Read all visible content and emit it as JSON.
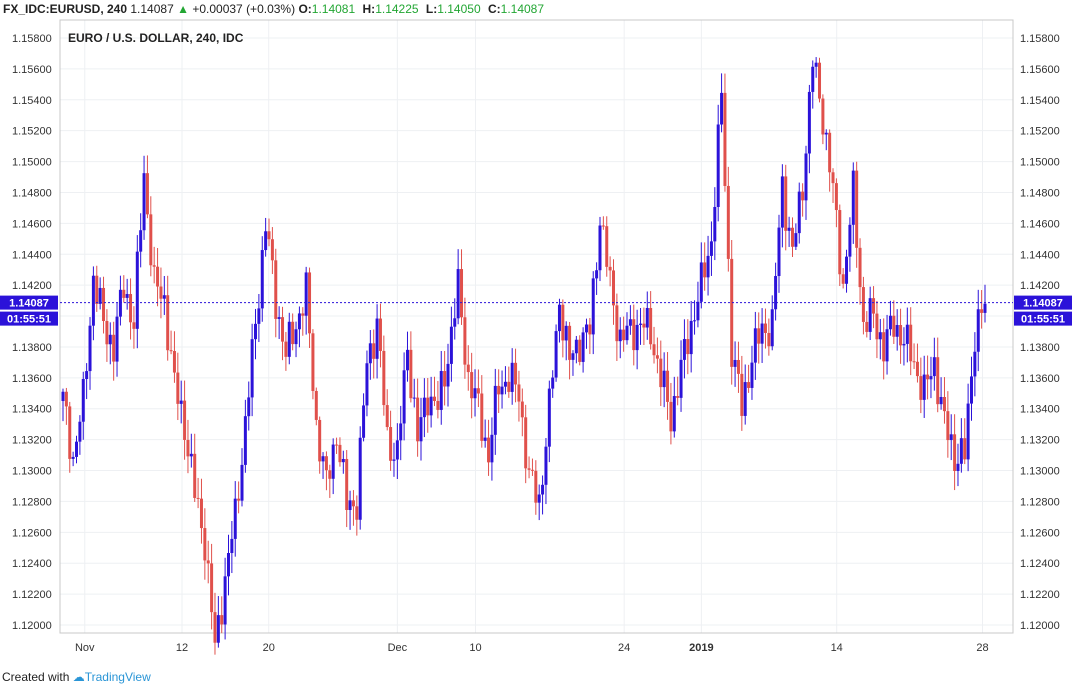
{
  "header": {
    "symbol": "FX_IDC:EURUSD, 240",
    "last": "1.14087",
    "change_arrow": "▲",
    "change": "+0.00037 (+0.03%)",
    "o_label": "O:",
    "o_value": "1.14081",
    "h_label": "H:",
    "h_value": "1.14225",
    "l_label": "L:",
    "l_value": "1.14050",
    "c_label": "C:",
    "c_value": "1.14087"
  },
  "footer": {
    "created_with": "Created with",
    "brand": "TradingView"
  },
  "chart_data": {
    "type": "candlestick",
    "title": "EURO / U.S. DOLLAR, 240, IDC",
    "ylim": [
      1.12,
      1.159
    ],
    "y_ticks": [
      "1.15800",
      "1.15600",
      "1.15400",
      "1.15200",
      "1.15000",
      "1.14800",
      "1.14600",
      "1.14400",
      "1.14200",
      "1.14000",
      "1.13800",
      "1.13600",
      "1.13400",
      "1.13200",
      "1.13000",
      "1.12800",
      "1.12600",
      "1.12400",
      "1.12200",
      "1.12000"
    ],
    "x_ticks": [
      {
        "label": "Nov",
        "frac": 0.026,
        "bold": false
      },
      {
        "label": "12",
        "frac": 0.128,
        "bold": false
      },
      {
        "label": "20",
        "frac": 0.219,
        "bold": false
      },
      {
        "label": "Dec",
        "frac": 0.354,
        "bold": false
      },
      {
        "label": "10",
        "frac": 0.436,
        "bold": false
      },
      {
        "label": "24",
        "frac": 0.592,
        "bold": false
      },
      {
        "label": "2019",
        "frac": 0.673,
        "bold": true
      },
      {
        "label": "14",
        "frac": 0.815,
        "bold": false
      },
      {
        "label": "28",
        "frac": 0.968,
        "bold": false
      }
    ],
    "current_price": "1.14087",
    "countdown": "01:55:51",
    "up_color": "#2b12d9",
    "down_color": "#e0504b",
    "anchors": [
      1.1345,
      1.1308,
      1.1345,
      1.1425,
      1.1395,
      1.138,
      1.142,
      1.1395,
      1.1492,
      1.142,
      1.141,
      1.1355,
      1.133,
      1.1285,
      1.1255,
      1.1185,
      1.123,
      1.127,
      1.133,
      1.1395,
      1.146,
      1.141,
      1.1375,
      1.1395,
      1.1415,
      1.133,
      1.129,
      1.1325,
      1.1278,
      1.128,
      1.137,
      1.1395,
      1.132,
      1.131,
      1.138,
      1.132,
      1.135,
      1.134,
      1.1375,
      1.1418,
      1.136,
      1.134,
      1.131,
      1.1355,
      1.136,
      1.135,
      1.1295,
      1.128,
      1.134,
      1.141,
      1.137,
      1.1385,
      1.139,
      1.1465,
      1.142,
      1.1385,
      1.139,
      1.1395,
      1.139,
      1.136,
      1.1335,
      1.1365,
      1.1395,
      1.142,
      1.145,
      1.1542,
      1.138,
      1.134,
      1.1375,
      1.139,
      1.1395,
      1.1485,
      1.144,
      1.1485,
      1.1565,
      1.153,
      1.148,
      1.142,
      1.148,
      1.1395,
      1.14,
      1.138,
      1.1395,
      1.1385,
      1.137,
      1.135,
      1.137,
      1.133,
      1.131,
      1.131,
      1.139,
      1.1408
    ],
    "candles_per_anchor": 3
  }
}
